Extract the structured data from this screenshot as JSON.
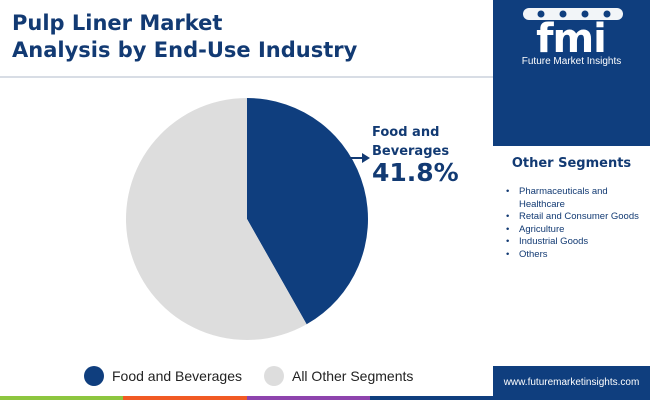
{
  "header": {
    "title_line1": "Pulp Liner Market",
    "title_line2": "Analysis by End-Use Industry"
  },
  "brand": {
    "logo_letters": "fmi",
    "name": "Future Market Insights",
    "url": "www.futuremarketinsights.com"
  },
  "other_segments": {
    "title": "Other Segments",
    "items": [
      "Pharmaceuticals and Healthcare",
      "Retail and Consumer Goods",
      "Agriculture",
      "Industrial Goods",
      "Others"
    ]
  },
  "callout": {
    "label_line1": "Food and",
    "label_line2": "Beverages",
    "value": "41.8%"
  },
  "colors": {
    "primary": "#0f3e7e",
    "other": "#dddddd",
    "title": "#123a73",
    "bottom_bar": [
      "#8dc63f",
      "#f15a24",
      "#8e44ad",
      "#0f3e7e"
    ]
  },
  "chart_data": {
    "type": "pie",
    "title": "Pulp Liner Market Analysis by End-Use Industry",
    "categories": [
      "Food and Beverages",
      "All Other Segments"
    ],
    "values": [
      41.8,
      58.2
    ],
    "colors": [
      "#0f3e7e",
      "#dddddd"
    ],
    "start_angle_deg": 0,
    "direction": "clockwise",
    "legend_position": "bottom"
  }
}
